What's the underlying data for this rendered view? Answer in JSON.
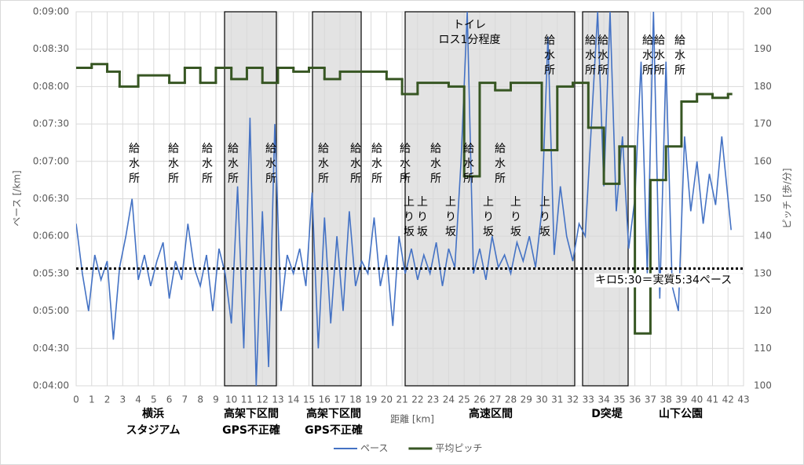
{
  "chart_data": {
    "type": "line",
    "y_label": "ペース [/km]",
    "y2_label": "ピッチ [歩/分]",
    "x_label": "距離 [km]",
    "xlim": [
      0,
      43
    ],
    "xticks": [
      0,
      1,
      2,
      3,
      4,
      5,
      6,
      7,
      8,
      9,
      10,
      11,
      12,
      13,
      14,
      15,
      16,
      17,
      18,
      19,
      20,
      21,
      22,
      23,
      24,
      25,
      26,
      27,
      28,
      29,
      30,
      31,
      32,
      33,
      34,
      35,
      36,
      37,
      38,
      39,
      40,
      41,
      42,
      43
    ],
    "ylim": [
      240,
      540
    ],
    "yticks": [
      {
        "value": 240,
        "label": "0:04:00"
      },
      {
        "value": 270,
        "label": "0:04:30"
      },
      {
        "value": 300,
        "label": "0:05:00"
      },
      {
        "value": 330,
        "label": "0:05:30"
      },
      {
        "value": 360,
        "label": "0:06:00"
      },
      {
        "value": 390,
        "label": "0:06:30"
      },
      {
        "value": 420,
        "label": "0:07:00"
      },
      {
        "value": 450,
        "label": "0:07:30"
      },
      {
        "value": 480,
        "label": "0:08:00"
      },
      {
        "value": 510,
        "label": "0:08:30"
      },
      {
        "value": 540,
        "label": "0:09:00"
      }
    ],
    "y2lim": [
      100,
      200
    ],
    "y2ticks": [
      100,
      110,
      120,
      130,
      140,
      150,
      160,
      170,
      180,
      190,
      200
    ],
    "grid": true,
    "series": [
      {
        "name": "ペース",
        "color": "#4472c4",
        "x": [
          0,
          0.4,
          0.8,
          1.2,
          1.6,
          2.0,
          2.4,
          2.8,
          3.2,
          3.6,
          4.0,
          4.4,
          4.8,
          5.2,
          5.6,
          6.0,
          6.4,
          6.8,
          7.2,
          7.6,
          8.0,
          8.4,
          8.8,
          9.2,
          9.6,
          10.0,
          10.4,
          10.8,
          11.2,
          11.6,
          12.0,
          12.4,
          12.8,
          13.2,
          13.6,
          14.0,
          14.4,
          14.8,
          15.2,
          15.6,
          16.0,
          16.4,
          16.8,
          17.2,
          17.6,
          18.0,
          18.4,
          18.8,
          19.2,
          19.6,
          20.0,
          20.4,
          20.8,
          21.2,
          21.6,
          22.0,
          22.4,
          22.8,
          23.2,
          23.6,
          24.0,
          24.4,
          24.8,
          25.2,
          25.6,
          26.0,
          26.4,
          26.8,
          27.2,
          27.6,
          28.0,
          28.4,
          28.8,
          29.2,
          29.6,
          30.0,
          30.4,
          30.8,
          31.2,
          31.6,
          32.0,
          32.4,
          32.8,
          33.2,
          33.6,
          34.0,
          34.4,
          34.8,
          35.2,
          35.6,
          36.0,
          36.4,
          36.8,
          37.2,
          37.6,
          38.0,
          38.4,
          38.8,
          39.2,
          39.6,
          40.0,
          40.4,
          40.8,
          41.2,
          41.6,
          42.0,
          42.2
        ],
        "values": [
          370,
          330,
          300,
          345,
          325,
          340,
          277,
          335,
          360,
          390,
          325,
          345,
          320,
          340,
          355,
          310,
          340,
          325,
          370,
          335,
          320,
          345,
          300,
          350,
          330,
          290,
          400,
          270,
          455,
          240,
          380,
          255,
          450,
          300,
          345,
          330,
          350,
          320,
          395,
          270,
          375,
          290,
          360,
          300,
          380,
          320,
          340,
          330,
          375,
          320,
          345,
          288,
          360,
          330,
          350,
          325,
          345,
          330,
          355,
          320,
          350,
          335,
          420,
          540,
          330,
          350,
          325,
          360,
          335,
          345,
          330,
          355,
          340,
          360,
          335,
          380,
          520,
          345,
          400,
          360,
          340,
          370,
          360,
          450,
          540,
          400,
          540,
          380,
          440,
          350,
          390,
          500,
          330,
          540,
          310,
          500,
          320,
          300,
          440,
          380,
          420,
          370,
          410,
          385,
          440,
          390,
          365
        ]
      },
      {
        "name": "平均ピッチ",
        "color": "#375623",
        "axis": "y2",
        "x": [
          0,
          1,
          2,
          2.8,
          4,
          6,
          7,
          8,
          9,
          10,
          11,
          12,
          13,
          14,
          15,
          16,
          17,
          20,
          21,
          22,
          24,
          25,
          26,
          27,
          28,
          30,
          31,
          32,
          33,
          34,
          35,
          36,
          37,
          38,
          39,
          40,
          41,
          42
        ],
        "values": [
          185,
          186,
          184,
          180,
          183,
          181,
          185,
          181,
          185,
          182,
          185,
          181,
          185,
          184,
          185,
          182,
          184,
          182,
          178,
          181,
          180,
          156,
          181,
          179,
          181,
          163,
          180,
          181,
          169,
          154,
          164,
          114,
          155,
          164,
          176,
          178,
          177,
          178
        ]
      }
    ],
    "reference_line": {
      "value": 334,
      "label": "キロ5:30＝実質5:34ペース"
    },
    "water_stations": [
      "給水所",
      "給水所",
      "給水所",
      "給水所",
      "給水所",
      "給水所",
      "給水所",
      "給水所",
      "給水所",
      "給水所",
      "給水所",
      "給水所",
      "給水所",
      "給水所",
      "給水所",
      "給水所",
      "給水所",
      "給水所"
    ],
    "uphill": [
      "上り坂",
      "上り坂",
      "上り坂",
      "上り坂",
      "上り坂",
      "上り坂"
    ],
    "toilet": [
      "トイレ",
      "ロス1分程度"
    ],
    "section_labels": [
      [
        "横浜",
        "スタジアム"
      ],
      [
        "高架下区間",
        "GPS不正確"
      ],
      [
        "高架下区間",
        "GPS不正確"
      ],
      [
        "高速区間"
      ],
      [
        "D突堤"
      ],
      [
        "山下公園"
      ]
    ]
  }
}
